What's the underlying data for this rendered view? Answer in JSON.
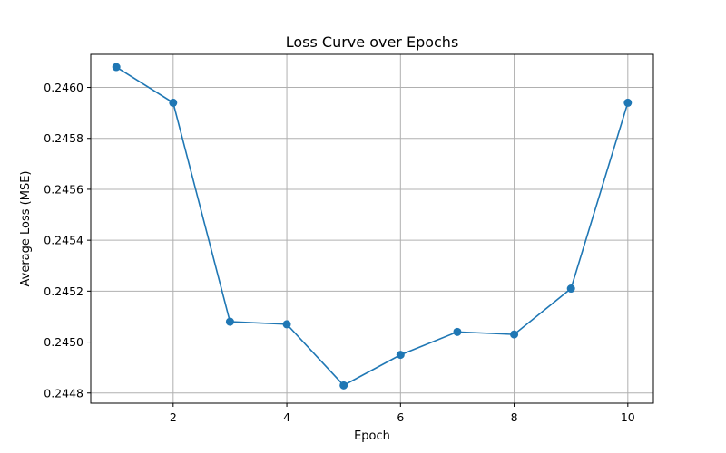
{
  "chart_data": {
    "type": "line",
    "title": "Loss Curve over Epochs",
    "xlabel": "Epoch",
    "ylabel": "Average Loss (MSE)",
    "xlim": [
      0.55,
      10.45
    ],
    "ylim": [
      0.24476,
      0.24613
    ],
    "xticks": [
      2,
      4,
      6,
      8,
      10
    ],
    "xtick_labels": [
      "2",
      "4",
      "6",
      "8",
      "10"
    ],
    "yticks": [
      0.2448,
      0.245,
      0.2452,
      0.2454,
      0.2456,
      0.2458,
      0.246
    ],
    "ytick_labels": [
      "0.2448",
      "0.2450",
      "0.2452",
      "0.2454",
      "0.2456",
      "0.2458",
      "0.2460"
    ],
    "grid": true,
    "series": [
      {
        "x": [
          1,
          2,
          3,
          4,
          5,
          6,
          7,
          8,
          9,
          10
        ],
        "y": [
          0.24608,
          0.24594,
          0.24508,
          0.24507,
          0.24483,
          0.24495,
          0.24504,
          0.24503,
          0.24521,
          0.24594
        ],
        "color": "#1f77b4",
        "marker": "circle"
      }
    ]
  }
}
